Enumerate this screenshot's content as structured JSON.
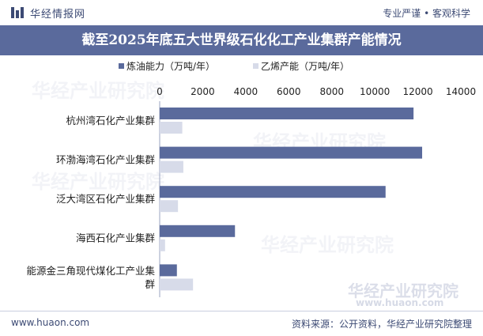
{
  "header": {
    "brand": "华经情报网",
    "slogan": "专业严谨 • 客观科学"
  },
  "title": "截至2025年底五大世界级石化化工产业集群产能情况",
  "watermark": {
    "cn": "华经产业研究院",
    "url": "www.huaon.com"
  },
  "footer": {
    "url": "www.huaon.com",
    "source": "资料来源：公开资料，华经产业研究院整理"
  },
  "colors": {
    "series1": "#5a6a9c",
    "series2": "#d7dbe9",
    "title_bg": "#5a6a9c",
    "text": "#3c4a74"
  },
  "chart_data": {
    "type": "bar",
    "orientation": "horizontal",
    "categories": [
      "杭州湾石化产业集群",
      "环渤海湾石化产业集群",
      "泛大湾区石化产业集群",
      "海西石化产业集群",
      "能源金三角现代煤化工产业集群"
    ],
    "category_lines": [
      [
        "杭州湾石化产业集群"
      ],
      [
        "环渤海湾石化产业集群"
      ],
      [
        "泛大湾区石化产业集群"
      ],
      [
        "海西石化产业集群"
      ],
      [
        "能源金三角现代煤化工产业集",
        "群"
      ]
    ],
    "series": [
      {
        "name": "炼油能力（万吨/年）",
        "values": [
          11800,
          12200,
          10500,
          3500,
          800
        ]
      },
      {
        "name": "乙烯产能（万吨/年）",
        "values": [
          1050,
          1100,
          850,
          250,
          1550
        ]
      }
    ],
    "xlim": [
      0,
      14000
    ],
    "xticks": [
      0,
      2000,
      4000,
      6000,
      8000,
      10000,
      12000,
      14000
    ],
    "legend_position": "top",
    "grid": false
  }
}
